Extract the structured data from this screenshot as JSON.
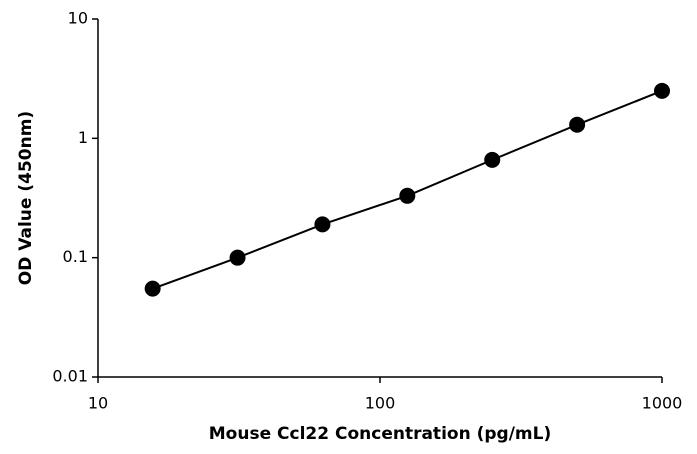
{
  "chart_data": {
    "type": "line",
    "x_label": "Mouse Ccl22 Concentration (pg/mL)",
    "y_label": "OD Value (450nm)",
    "x": [
      15.625,
      31.25,
      62.5,
      125,
      250,
      500,
      1000
    ],
    "values": [
      0.055,
      0.1,
      0.19,
      0.33,
      0.66,
      1.3,
      2.5
    ],
    "color": "#000000",
    "x_log": true,
    "y_log": true,
    "xlim": [
      10,
      1000
    ],
    "xticks": [
      10,
      100,
      1000
    ],
    "ylim": [
      0.01,
      10
    ],
    "yticks": [
      0.01,
      0.1,
      1,
      10
    ],
    "grid": false
  }
}
